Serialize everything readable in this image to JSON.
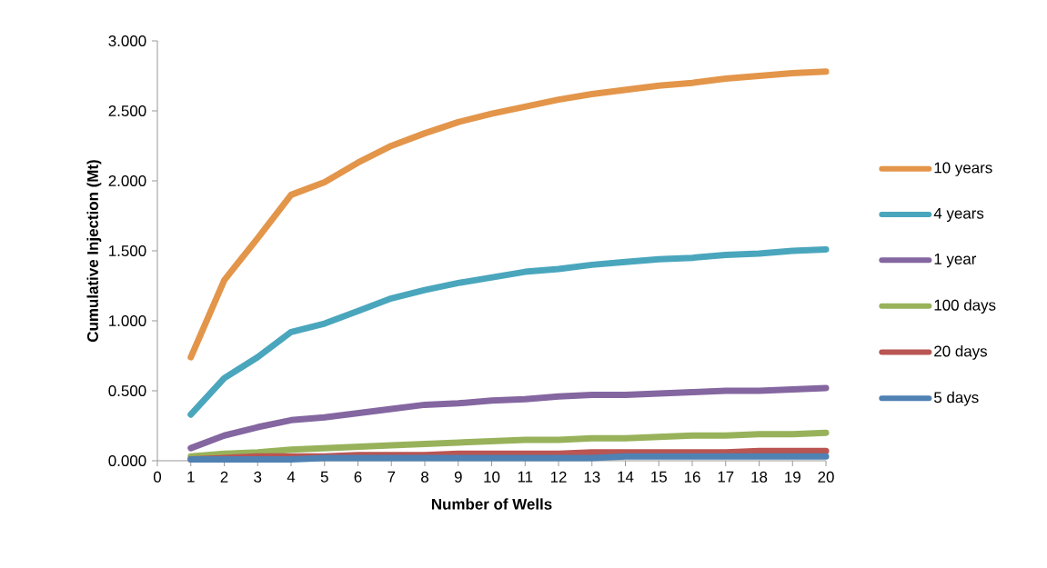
{
  "chart_data": {
    "type": "line",
    "xlabel": "Number of Wells",
    "ylabel": "Cumulative Injection (Mt)",
    "x": [
      1,
      2,
      3,
      4,
      5,
      6,
      7,
      8,
      9,
      10,
      11,
      12,
      13,
      14,
      15,
      16,
      17,
      18,
      19,
      20
    ],
    "xlim": [
      0,
      20
    ],
    "xticks": [
      0,
      1,
      2,
      3,
      4,
      5,
      6,
      7,
      8,
      9,
      10,
      11,
      12,
      13,
      14,
      15,
      16,
      17,
      18,
      19,
      20
    ],
    "ylim": [
      0,
      3
    ],
    "yticks": [
      {
        "value": 0,
        "label": "0.000"
      },
      {
        "value": 0.5,
        "label": "0.500"
      },
      {
        "value": 1,
        "label": "1.000"
      },
      {
        "value": 1.5,
        "label": "1.500"
      },
      {
        "value": 2,
        "label": "2.000"
      },
      {
        "value": 2.5,
        "label": "2.500"
      },
      {
        "value": 3,
        "label": "3.000"
      }
    ],
    "grid": false,
    "legend": "right",
    "marker": "none",
    "line_style": "solid",
    "series": [
      {
        "name": "10 years",
        "color": "#e3954a",
        "values": [
          0.74,
          1.29,
          1.59,
          1.9,
          1.99,
          2.13,
          2.25,
          2.34,
          2.42,
          2.48,
          2.53,
          2.58,
          2.62,
          2.65,
          2.68,
          2.7,
          2.73,
          2.75,
          2.77,
          2.78
        ]
      },
      {
        "name": "4 years",
        "color": "#4aa6bd",
        "values": [
          0.33,
          0.59,
          0.74,
          0.92,
          0.98,
          1.07,
          1.16,
          1.22,
          1.27,
          1.31,
          1.35,
          1.37,
          1.4,
          1.42,
          1.44,
          1.45,
          1.47,
          1.48,
          1.5,
          1.51
        ]
      },
      {
        "name": "1 year",
        "color": "#8466a0",
        "values": [
          0.09,
          0.18,
          0.24,
          0.29,
          0.31,
          0.34,
          0.37,
          0.4,
          0.41,
          0.43,
          0.44,
          0.46,
          0.47,
          0.47,
          0.48,
          0.49,
          0.5,
          0.5,
          0.51,
          0.52
        ]
      },
      {
        "name": "100 days",
        "color": "#98b25b",
        "values": [
          0.03,
          0.05,
          0.06,
          0.08,
          0.09,
          0.1,
          0.11,
          0.12,
          0.13,
          0.14,
          0.15,
          0.15,
          0.16,
          0.16,
          0.17,
          0.18,
          0.18,
          0.19,
          0.19,
          0.2
        ]
      },
      {
        "name": "20 days",
        "color": "#b95552",
        "values": [
          0.01,
          0.02,
          0.03,
          0.03,
          0.03,
          0.04,
          0.04,
          0.04,
          0.05,
          0.05,
          0.05,
          0.05,
          0.06,
          0.06,
          0.06,
          0.06,
          0.06,
          0.07,
          0.07,
          0.07
        ]
      },
      {
        "name": "5 days",
        "color": "#4f81b3",
        "values": [
          0.01,
          0.01,
          0.01,
          0.01,
          0.02,
          0.02,
          0.02,
          0.02,
          0.02,
          0.02,
          0.02,
          0.02,
          0.02,
          0.03,
          0.03,
          0.03,
          0.03,
          0.03,
          0.03,
          0.03
        ]
      }
    ]
  }
}
